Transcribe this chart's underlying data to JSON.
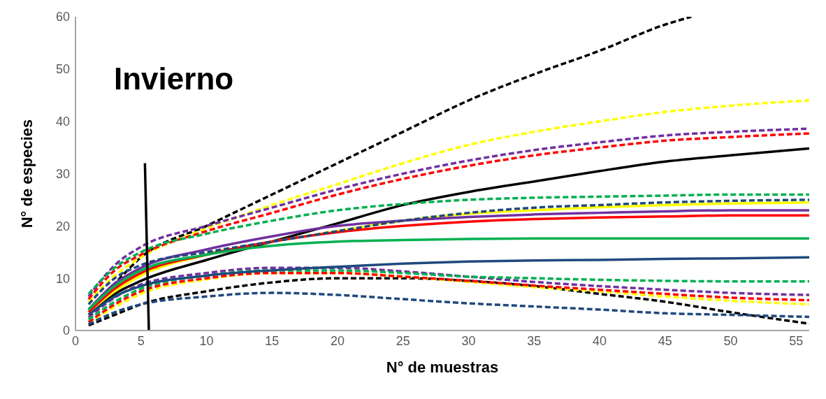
{
  "chart_data": {
    "type": "line",
    "title": "Invierno",
    "xlabel": "N° de muestras",
    "ylabel": "N° de especies",
    "xlim": [
      0,
      56
    ],
    "xticks": [
      0,
      5,
      10,
      15,
      20,
      25,
      30,
      35,
      40,
      45,
      50,
      55
    ],
    "ylim": [
      0,
      60
    ],
    "yticks": [
      0,
      10,
      20,
      30,
      40,
      50,
      60
    ],
    "grid": false,
    "marker": "none",
    "x": [
      1,
      3,
      5,
      10,
      15,
      20,
      25,
      30,
      35,
      40,
      45,
      50,
      56
    ],
    "series": [
      {
        "color": "#000000",
        "line_style": "solid",
        "values": [
          3,
          7,
          9.5,
          13.5,
          17,
          20.5,
          24,
          26.5,
          28.5,
          30.5,
          32.3,
          33.5,
          34.8
        ]
      },
      {
        "color": "#000000",
        "line_style": "dashed",
        "x": [
          1,
          3,
          5,
          10,
          15,
          20,
          25,
          30,
          35,
          40,
          45,
          47
        ],
        "values": [
          4,
          9,
          14,
          20,
          26,
          32,
          38,
          44,
          49,
          53.5,
          58.5,
          60
        ]
      },
      {
        "color": "#000000",
        "line_style": "dashed",
        "values": [
          1,
          3,
          5,
          7.5,
          9.2,
          10,
          10,
          9.5,
          8.5,
          7,
          5.5,
          3.5,
          1.3
        ]
      },
      {
        "color": "#ffff00",
        "line_style": "solid",
        "values": [
          3.5,
          7.5,
          10.5,
          14.5,
          17,
          19,
          21,
          22.3,
          23,
          23.6,
          24,
          24.3,
          24.5
        ]
      },
      {
        "color": "#ffff00",
        "line_style": "dashed",
        "values": [
          5.5,
          10.5,
          14,
          19.5,
          24,
          28,
          32,
          35.5,
          38,
          40,
          41.8,
          43,
          44
        ]
      },
      {
        "color": "#ffff00",
        "line_style": "dashed",
        "values": [
          1.5,
          4.5,
          7,
          9.8,
          11,
          11,
          10.3,
          9.3,
          8.3,
          7.5,
          6.5,
          5.7,
          5
        ]
      },
      {
        "color": "#7030a0",
        "line_style": "solid",
        "values": [
          4,
          9,
          12,
          15.5,
          18,
          20,
          21,
          21.7,
          22.2,
          22.5,
          22.8,
          23,
          23
        ]
      },
      {
        "color": "#7030a0",
        "line_style": "dashed",
        "values": [
          6.5,
          12.5,
          16,
          20,
          23.5,
          27,
          30,
          32.5,
          34.5,
          36,
          37.3,
          38,
          38.6
        ]
      },
      {
        "color": "#7030a0",
        "line_style": "dashed",
        "values": [
          2.5,
          6.3,
          8.8,
          11,
          12,
          12,
          11.3,
          10.3,
          9.3,
          8.5,
          7.8,
          7.2,
          6.8
        ]
      },
      {
        "color": "#ff0000",
        "line_style": "solid",
        "values": [
          3.5,
          8,
          11,
          14.5,
          17,
          18.8,
          20,
          20.8,
          21.3,
          21.6,
          21.8,
          22,
          22
        ]
      },
      {
        "color": "#ff0000",
        "line_style": "dashed",
        "values": [
          6,
          11.5,
          14.5,
          19,
          22.5,
          26,
          29,
          31.5,
          33.5,
          35,
          36.3,
          37,
          37.7
        ]
      },
      {
        "color": "#ff0000",
        "line_style": "dashed",
        "values": [
          1.6,
          5,
          7.5,
          10,
          11,
          11,
          10.3,
          9.5,
          8.6,
          7.8,
          7,
          6.3,
          5.8
        ]
      },
      {
        "color": "#00b050",
        "line_style": "solid",
        "values": [
          4,
          8.5,
          11.5,
          14.5,
          16.2,
          17,
          17.3,
          17.5,
          17.6,
          17.6,
          17.6,
          17.6,
          17.6
        ]
      },
      {
        "color": "#00b050",
        "line_style": "dashed",
        "values": [
          7,
          12,
          15,
          18.5,
          21,
          23,
          24.2,
          25,
          25.4,
          25.6,
          25.8,
          26,
          26
        ]
      },
      {
        "color": "#00b050",
        "line_style": "dashed",
        "values": [
          2.1,
          5.5,
          8,
          10.5,
          11.5,
          11.5,
          11,
          10.3,
          10,
          9.7,
          9.5,
          9.4,
          9.4
        ]
      },
      {
        "color": "#1f497d",
        "line_style": "solid",
        "values": [
          3,
          6.5,
          8.5,
          10.5,
          11.5,
          12.2,
          12.8,
          13.2,
          13.4,
          13.5,
          13.7,
          13.8,
          14
        ]
      },
      {
        "color": "#1f497d",
        "line_style": "dashed",
        "values": [
          5,
          10,
          12.5,
          15,
          17,
          19,
          21,
          22.5,
          23.5,
          24,
          24.5,
          24.8,
          25
        ]
      },
      {
        "color": "#1f497d",
        "line_style": "dashed",
        "values": [
          1.2,
          3.5,
          5,
          6.5,
          7.2,
          6.8,
          6,
          5.2,
          4.6,
          4,
          3.3,
          3,
          2.6
        ]
      },
      {
        "color": "#000000",
        "line_style": "solid",
        "x": [
          5.3,
          5.6
        ],
        "values": [
          32,
          0
        ]
      }
    ]
  }
}
